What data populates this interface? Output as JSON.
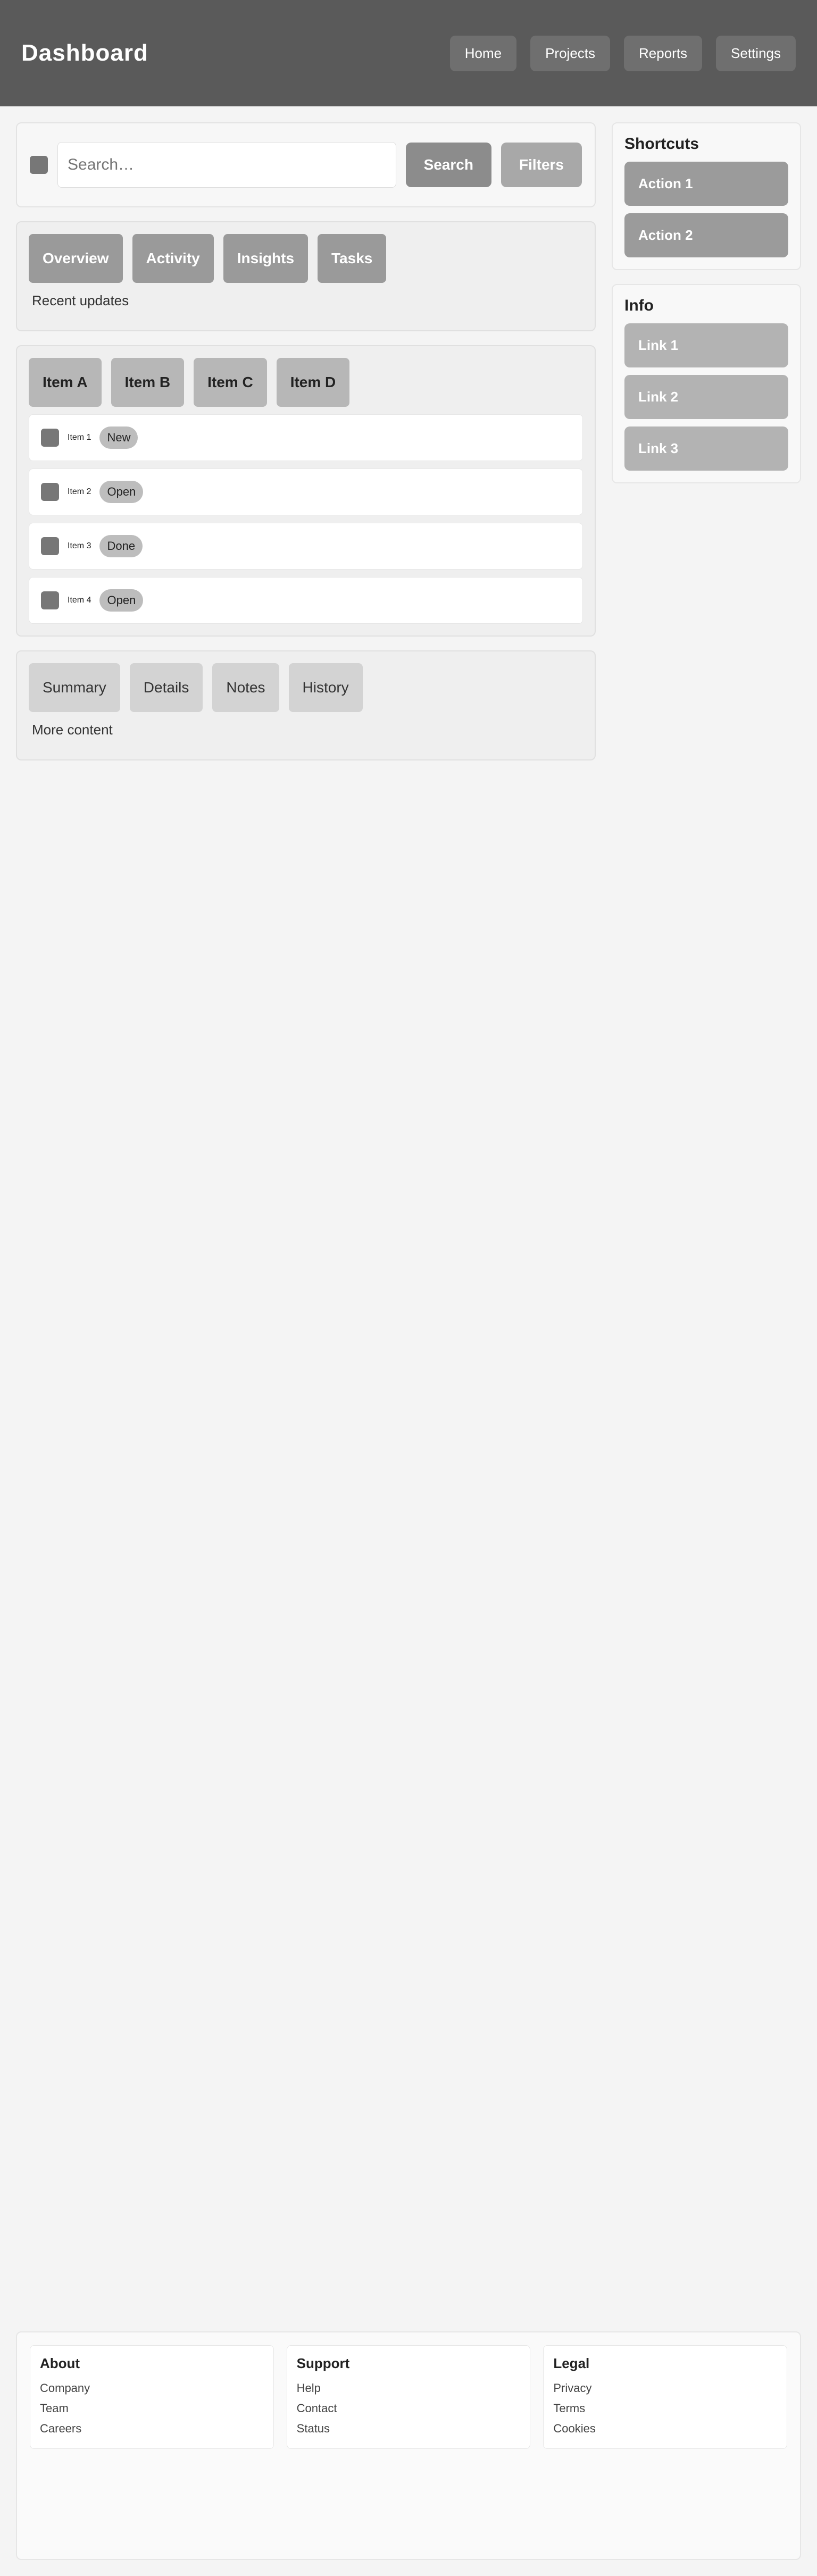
{
  "header": {
    "brand": "Dashboard",
    "nav": [
      "Home",
      "Projects",
      "Reports",
      "Settings"
    ]
  },
  "search": {
    "placeholder": "Search…",
    "value": "",
    "button_label": "Search",
    "filter_label": "Filters"
  },
  "main": {
    "section_a": {
      "blocks": [
        "Overview",
        "Activity",
        "Insights",
        "Tasks"
      ],
      "subtitle": "Recent updates"
    },
    "section_b": {
      "blocks": [
        "Item A",
        "Item B",
        "Item C",
        "Item D"
      ],
      "items": [
        {
          "label": "Item 1",
          "badge": "New"
        },
        {
          "label": "Item 2",
          "badge": "Open"
        },
        {
          "label": "Item 3",
          "badge": "Done"
        },
        {
          "label": "Item 4",
          "badge": "Open"
        }
      ]
    },
    "section_c": {
      "blocks": [
        "Summary",
        "Details",
        "Notes",
        "History"
      ],
      "subtitle": "More content"
    }
  },
  "sidebar": {
    "box1_title": "Shortcuts",
    "box1_pills": [
      "Action 1",
      "Action 2"
    ],
    "box2_title": "Info",
    "box2_pills": [
      "Link 1",
      "Link 2",
      "Link 3"
    ]
  },
  "footer": {
    "cols": [
      {
        "title": "About",
        "lines": [
          "Company",
          "Team",
          "Careers"
        ]
      },
      {
        "title": "Support",
        "lines": [
          "Help",
          "Contact",
          "Status"
        ]
      },
      {
        "title": "Legal",
        "lines": [
          "Privacy",
          "Terms",
          "Cookies"
        ]
      }
    ]
  }
}
